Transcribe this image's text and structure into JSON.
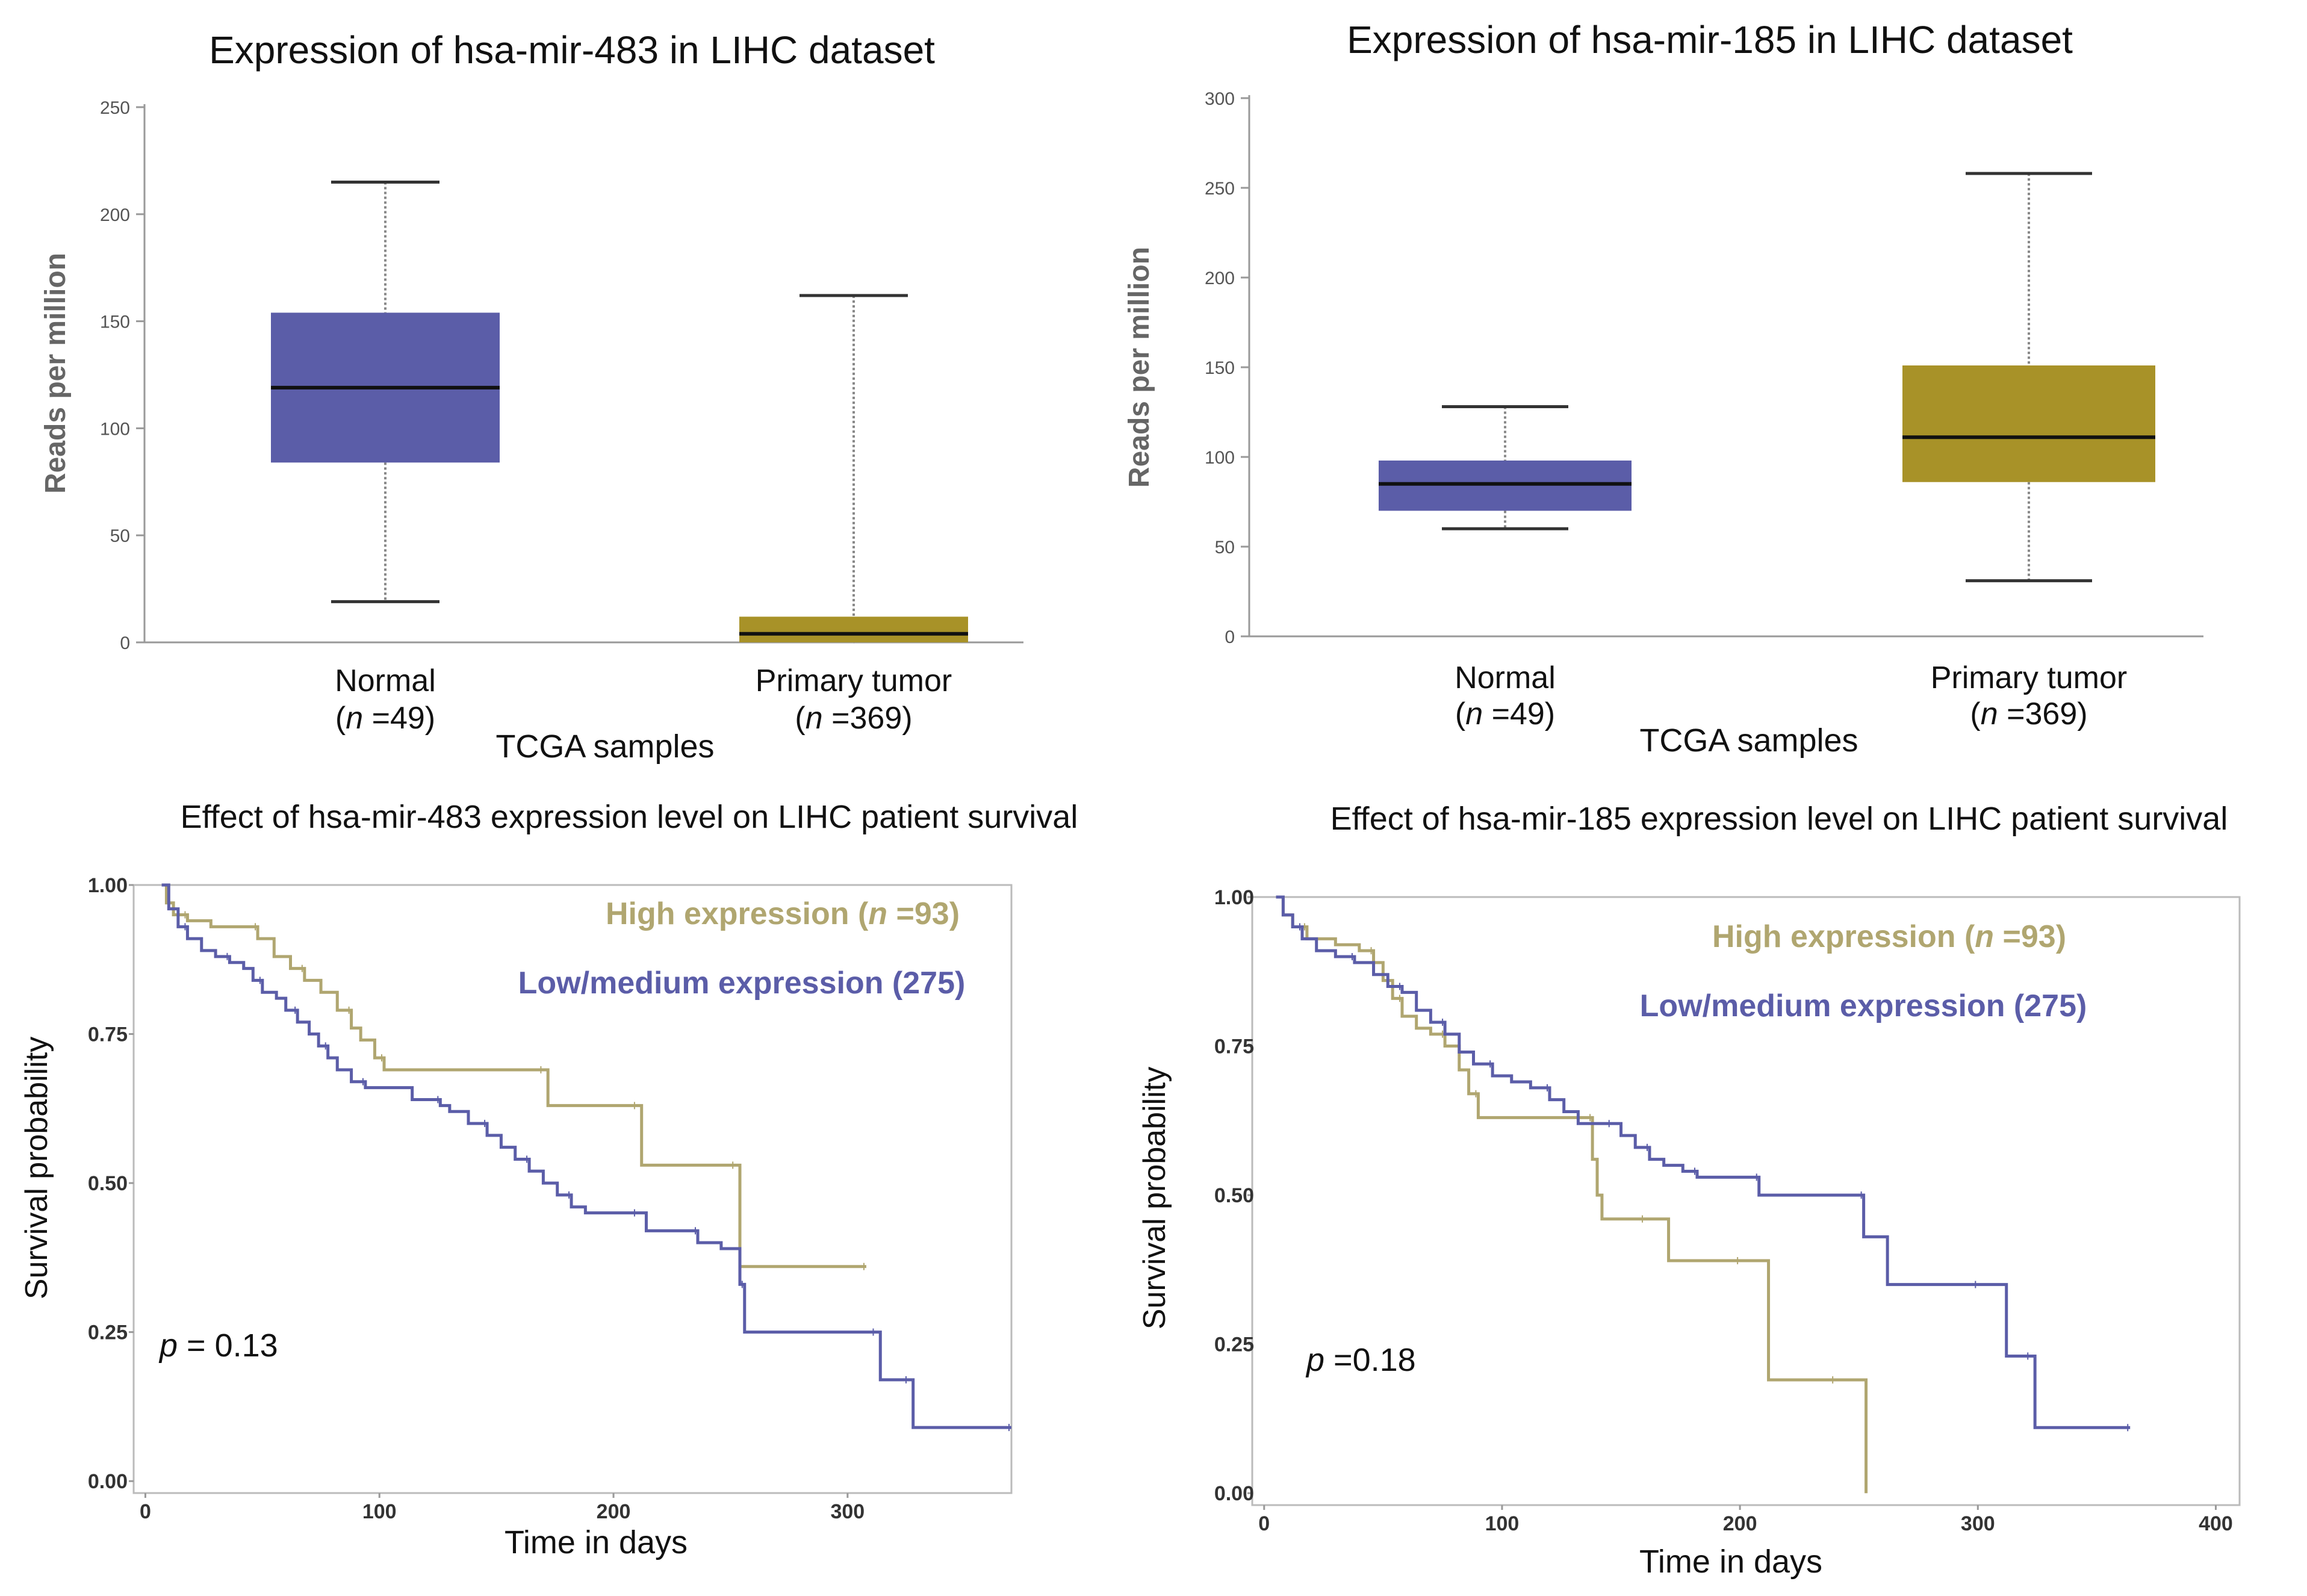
{
  "chart_data": [
    {
      "id": "box-mir483",
      "type": "box",
      "title": "Expression of hsa-mir-483 in LIHC dataset",
      "ylabel": "Reads per million",
      "xlabel": "TCGA samples",
      "ylim": [
        0,
        250
      ],
      "yticks": [
        0,
        50,
        100,
        150,
        200,
        250
      ],
      "groups": [
        {
          "name": "Normal",
          "n_label": "(n =49)",
          "n_prefix": "(",
          "n_italic": "n",
          "n_suffix": " =49)",
          "color": "#5b5da8",
          "min": 19,
          "q1": 84,
          "median": 119,
          "q3": 154,
          "max": 215
        },
        {
          "name": "Primary tumor",
          "n_label": "(n =369)",
          "n_prefix": "(",
          "n_italic": "n",
          "n_suffix": " =369)",
          "color": "#a89228",
          "min": 0,
          "q1": 0,
          "median": 4,
          "q3": 12,
          "max": 162
        }
      ]
    },
    {
      "id": "box-mir185",
      "type": "box",
      "title": "Expression of hsa-mir-185 in LIHC dataset",
      "ylabel": "Reads per million",
      "xlabel": "TCGA samples",
      "ylim": [
        0,
        300
      ],
      "yticks": [
        0,
        50,
        100,
        150,
        200,
        250,
        300
      ],
      "groups": [
        {
          "name": "Normal",
          "n_label": "(n =49)",
          "n_prefix": "(",
          "n_italic": "n",
          "n_suffix": " =49)",
          "color": "#5b5da8",
          "min": 60,
          "q1": 70,
          "median": 85,
          "q3": 98,
          "max": 128
        },
        {
          "name": "Primary tumor",
          "n_label": "(n =369)",
          "n_prefix": "(",
          "n_italic": "n",
          "n_suffix": " =369)",
          "color": "#a89228",
          "min": 31,
          "q1": 86,
          "median": 111,
          "q3": 151,
          "max": 258
        }
      ]
    },
    {
      "id": "km-mir483",
      "type": "line",
      "subtype": "kaplan-meier",
      "title": "Effect of hsa-mir-483 expression level on LIHC patient survival",
      "xlabel": "Time in days",
      "ylabel": "Survival probability",
      "xlim": [
        -5,
        370
      ],
      "ylim": [
        -0.02,
        1.0
      ],
      "xticks": [
        0,
        100,
        200,
        300
      ],
      "yticks": [
        0.0,
        0.25,
        0.5,
        0.75,
        1.0
      ],
      "ytick_labels": [
        "0.00",
        "0.25",
        "0.50",
        "0.75",
        "1.00"
      ],
      "p_label": "p",
      "p_text": " = 0.13",
      "series": [
        {
          "name": "High expression (n =93)",
          "label_prefix": "High expression (",
          "label_italic": "n",
          "label_suffix": " =93)",
          "color": "#b0a670",
          "steps": [
            [
              7,
              1.0
            ],
            [
              9,
              0.97
            ],
            [
              12,
              0.95
            ],
            [
              18,
              0.94
            ],
            [
              28,
              0.93
            ],
            [
              40,
              0.93
            ],
            [
              48,
              0.91
            ],
            [
              55,
              0.88
            ],
            [
              62,
              0.86
            ],
            [
              68,
              0.84
            ],
            [
              75,
              0.82
            ],
            [
              82,
              0.79
            ],
            [
              88,
              0.76
            ],
            [
              92,
              0.74
            ],
            [
              98,
              0.71
            ],
            [
              102,
              0.69
            ],
            [
              110,
              0.69
            ],
            [
              140,
              0.69
            ],
            [
              170,
              0.69
            ],
            [
              172,
              0.63
            ],
            [
              200,
              0.63
            ],
            [
              210,
              0.63
            ],
            [
              212,
              0.53
            ],
            [
              245,
              0.53
            ],
            [
              252,
              0.53
            ],
            [
              254,
              0.36
            ],
            [
              290,
              0.36
            ],
            [
              308,
              0.36
            ]
          ]
        },
        {
          "name": "Low/medium expression (275)",
          "color": "#5b5da8",
          "steps": [
            [
              7,
              1.0
            ],
            [
              10,
              0.96
            ],
            [
              14,
              0.93
            ],
            [
              18,
              0.91
            ],
            [
              24,
              0.89
            ],
            [
              30,
              0.88
            ],
            [
              36,
              0.87
            ],
            [
              42,
              0.86
            ],
            [
              46,
              0.84
            ],
            [
              50,
              0.82
            ],
            [
              56,
              0.81
            ],
            [
              60,
              0.79
            ],
            [
              65,
              0.77
            ],
            [
              70,
              0.75
            ],
            [
              74,
              0.73
            ],
            [
              78,
              0.71
            ],
            [
              82,
              0.69
            ],
            [
              88,
              0.67
            ],
            [
              94,
              0.66
            ],
            [
              110,
              0.66
            ],
            [
              114,
              0.64
            ],
            [
              126,
              0.63
            ],
            [
              130,
              0.62
            ],
            [
              138,
              0.6
            ],
            [
              146,
              0.58
            ],
            [
              152,
              0.56
            ],
            [
              158,
              0.54
            ],
            [
              164,
              0.52
            ],
            [
              170,
              0.5
            ],
            [
              176,
              0.48
            ],
            [
              182,
              0.46
            ],
            [
              188,
              0.45
            ],
            [
              200,
              0.45
            ],
            [
              210,
              0.45
            ],
            [
              214,
              0.42
            ],
            [
              230,
              0.42
            ],
            [
              236,
              0.4
            ],
            [
              246,
              0.39
            ],
            [
              254,
              0.33
            ],
            [
              256,
              0.25
            ],
            [
              280,
              0.25
            ],
            [
              300,
              0.25
            ],
            [
              312,
              0.25
            ],
            [
              314,
              0.17
            ],
            [
              320,
              0.17
            ],
            [
              326,
              0.17
            ],
            [
              328,
              0.09
            ],
            [
              360,
              0.09
            ],
            [
              370,
              0.09
            ]
          ]
        }
      ]
    },
    {
      "id": "km-mir185",
      "type": "line",
      "subtype": "kaplan-meier",
      "title": "Effect of hsa-mir-185 expression level on LIHC patient survival",
      "xlabel": "Time in days",
      "ylabel": "Survival probability",
      "xlim": [
        -5,
        410
      ],
      "ylim": [
        -0.02,
        1.0
      ],
      "xticks": [
        0,
        100,
        200,
        300,
        400
      ],
      "yticks": [
        0.0,
        0.25,
        0.5,
        0.75,
        1.0
      ],
      "ytick_labels": [
        "0.00",
        "0.25",
        "0.50",
        "0.75",
        "1.00"
      ],
      "p_label": "p",
      "p_text": " =0.18",
      "series": [
        {
          "name": "High expression (n =93)",
          "label_prefix": "High expression (",
          "label_italic": "n",
          "label_suffix": " =93)",
          "color": "#b0a670",
          "steps": [
            [
              5,
              1.0
            ],
            [
              8,
              0.97
            ],
            [
              12,
              0.95
            ],
            [
              18,
              0.93
            ],
            [
              30,
              0.92
            ],
            [
              40,
              0.91
            ],
            [
              46,
              0.89
            ],
            [
              50,
              0.86
            ],
            [
              54,
              0.83
            ],
            [
              58,
              0.8
            ],
            [
              64,
              0.78
            ],
            [
              70,
              0.77
            ],
            [
              76,
              0.75
            ],
            [
              82,
              0.71
            ],
            [
              86,
              0.67
            ],
            [
              90,
              0.63
            ],
            [
              120,
              0.63
            ],
            [
              136,
              0.63
            ],
            [
              138,
              0.56
            ],
            [
              140,
              0.5
            ],
            [
              142,
              0.46
            ],
            [
              160,
              0.46
            ],
            [
              168,
              0.46
            ],
            [
              170,
              0.39
            ],
            [
              200,
              0.39
            ],
            [
              210,
              0.39
            ],
            [
              212,
              0.19
            ],
            [
              240,
              0.19
            ],
            [
              252,
              0.19
            ],
            [
              253,
              0.0
            ]
          ]
        },
        {
          "name": "Low/medium expression (275)",
          "color": "#5b5da8",
          "steps": [
            [
              5,
              1.0
            ],
            [
              8,
              0.97
            ],
            [
              12,
              0.95
            ],
            [
              16,
              0.93
            ],
            [
              22,
              0.91
            ],
            [
              30,
              0.9
            ],
            [
              38,
              0.89
            ],
            [
              46,
              0.87
            ],
            [
              52,
              0.85
            ],
            [
              58,
              0.84
            ],
            [
              64,
              0.81
            ],
            [
              70,
              0.79
            ],
            [
              76,
              0.77
            ],
            [
              82,
              0.74
            ],
            [
              88,
              0.72
            ],
            [
              96,
              0.7
            ],
            [
              104,
              0.69
            ],
            [
              112,
              0.68
            ],
            [
              120,
              0.66
            ],
            [
              126,
              0.64
            ],
            [
              132,
              0.62
            ],
            [
              146,
              0.62
            ],
            [
              150,
              0.6
            ],
            [
              156,
              0.58
            ],
            [
              162,
              0.56
            ],
            [
              168,
              0.55
            ],
            [
              176,
              0.54
            ],
            [
              182,
              0.53
            ],
            [
              190,
              0.53
            ],
            [
              204,
              0.53
            ],
            [
              208,
              0.5
            ],
            [
              240,
              0.5
            ],
            [
              250,
              0.5
            ],
            [
              252,
              0.43
            ],
            [
              258,
              0.43
            ],
            [
              262,
              0.35
            ],
            [
              300,
              0.35
            ],
            [
              310,
              0.35
            ],
            [
              312,
              0.23
            ],
            [
              322,
              0.23
            ],
            [
              324,
              0.11
            ],
            [
              360,
              0.11
            ],
            [
              364,
              0.11
            ]
          ]
        }
      ]
    }
  ]
}
